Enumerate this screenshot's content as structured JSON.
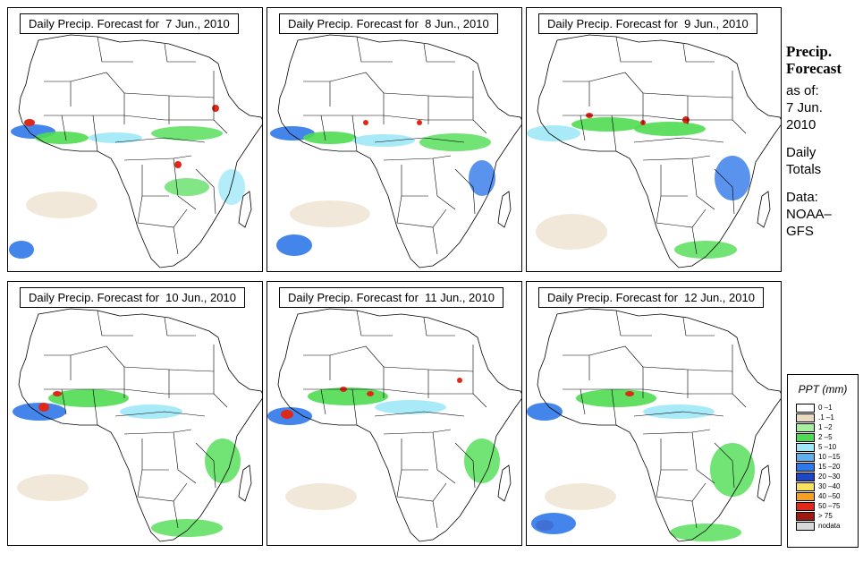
{
  "panels": [
    {
      "title": "Daily Precip. Forecast for  7 Jun., 2010"
    },
    {
      "title": "Daily Precip. Forecast for  8 Jun., 2010"
    },
    {
      "title": "Daily Precip. Forecast for  9 Jun., 2010"
    },
    {
      "title": "Daily Precip. Forecast for  10 Jun., 2010"
    },
    {
      "title": "Daily Precip. Forecast for  11 Jun., 2010"
    },
    {
      "title": "Daily Precip. Forecast for  12 Jun., 2010"
    }
  ],
  "sidebar": {
    "heading_line1": "Precip.",
    "heading_line2": "Forecast",
    "asof_line1": "as of:",
    "asof_line2": "7 Jun.",
    "asof_line3": "2010",
    "daily_line1": "Daily",
    "daily_line2": "Totals",
    "data_line1": "Data:",
    "data_line2": "NOAA–",
    "data_line3": "GFS"
  },
  "legend": {
    "title": "PPT (mm)",
    "items": [
      {
        "label": "0 –1",
        "color": "#ffffff"
      },
      {
        "label": ".1 –1",
        "color": "#ead9c0"
      },
      {
        "label": "1 –2",
        "color": "#a8f0a0"
      },
      {
        "label": "2 –5",
        "color": "#4fdc52"
      },
      {
        "label": "5 –10",
        "color": "#a0e8f8"
      },
      {
        "label": "10 –15",
        "color": "#5fb0f0"
      },
      {
        "label": "15 –20",
        "color": "#2f78e8"
      },
      {
        "label": "20 –30",
        "color": "#1c48c8"
      },
      {
        "label": "30 –40",
        "color": "#f8e060"
      },
      {
        "label": "40 –50",
        "color": "#f8a020"
      },
      {
        "label": "50 –75",
        "color": "#e02818"
      },
      {
        "label": "> 75",
        "color": "#a01810"
      },
      {
        "label": "nodata",
        "color": "#d8d8d8"
      }
    ]
  },
  "colors": {
    "land": "#ffffff",
    "border": "#000000",
    "light_rain": "#ead9c0",
    "green": "#4fdc52",
    "cyan": "#a0e8f8",
    "blue": "#2f78e8",
    "heavy": "#e02818"
  }
}
